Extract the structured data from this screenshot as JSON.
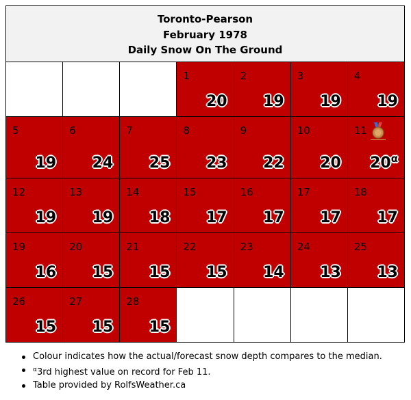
{
  "title": {
    "station": "Toronto-Pearson",
    "month": "February 1978",
    "metric": "Daily Snow On The Ground"
  },
  "colors": {
    "cell_fill": "#c00000",
    "header_bg": "#f2f2f2",
    "empty_fill": "#ffffff"
  },
  "days": [
    {
      "day": "1",
      "value": "20"
    },
    {
      "day": "2",
      "value": "19"
    },
    {
      "day": "3",
      "value": "19"
    },
    {
      "day": "4",
      "value": "19"
    },
    {
      "day": "5",
      "value": "19"
    },
    {
      "day": "6",
      "value": "24"
    },
    {
      "day": "7",
      "value": "25"
    },
    {
      "day": "8",
      "value": "23"
    },
    {
      "day": "9",
      "value": "22"
    },
    {
      "day": "10",
      "value": "20"
    },
    {
      "day": "11",
      "value": "20",
      "superscript": "α",
      "icon": "bronze-medal-icon"
    },
    {
      "day": "12",
      "value": "19"
    },
    {
      "day": "13",
      "value": "19"
    },
    {
      "day": "14",
      "value": "18"
    },
    {
      "day": "15",
      "value": "17"
    },
    {
      "day": "16",
      "value": "17"
    },
    {
      "day": "17",
      "value": "17"
    },
    {
      "day": "18",
      "value": "17"
    },
    {
      "day": "19",
      "value": "16"
    },
    {
      "day": "20",
      "value": "15"
    },
    {
      "day": "21",
      "value": "15"
    },
    {
      "day": "22",
      "value": "15"
    },
    {
      "day": "23",
      "value": "14"
    },
    {
      "day": "24",
      "value": "13"
    },
    {
      "day": "25",
      "value": "13"
    },
    {
      "day": "26",
      "value": "15"
    },
    {
      "day": "27",
      "value": "15"
    },
    {
      "day": "28",
      "value": "15"
    }
  ],
  "notes": {
    "n1": "Colour indicates how the actual/forecast snow depth compares to the median.",
    "n2_sup": "α",
    "n2": "3rd highest value on record for Feb 11.",
    "n3": "Table provided by RolfsWeather.ca"
  }
}
